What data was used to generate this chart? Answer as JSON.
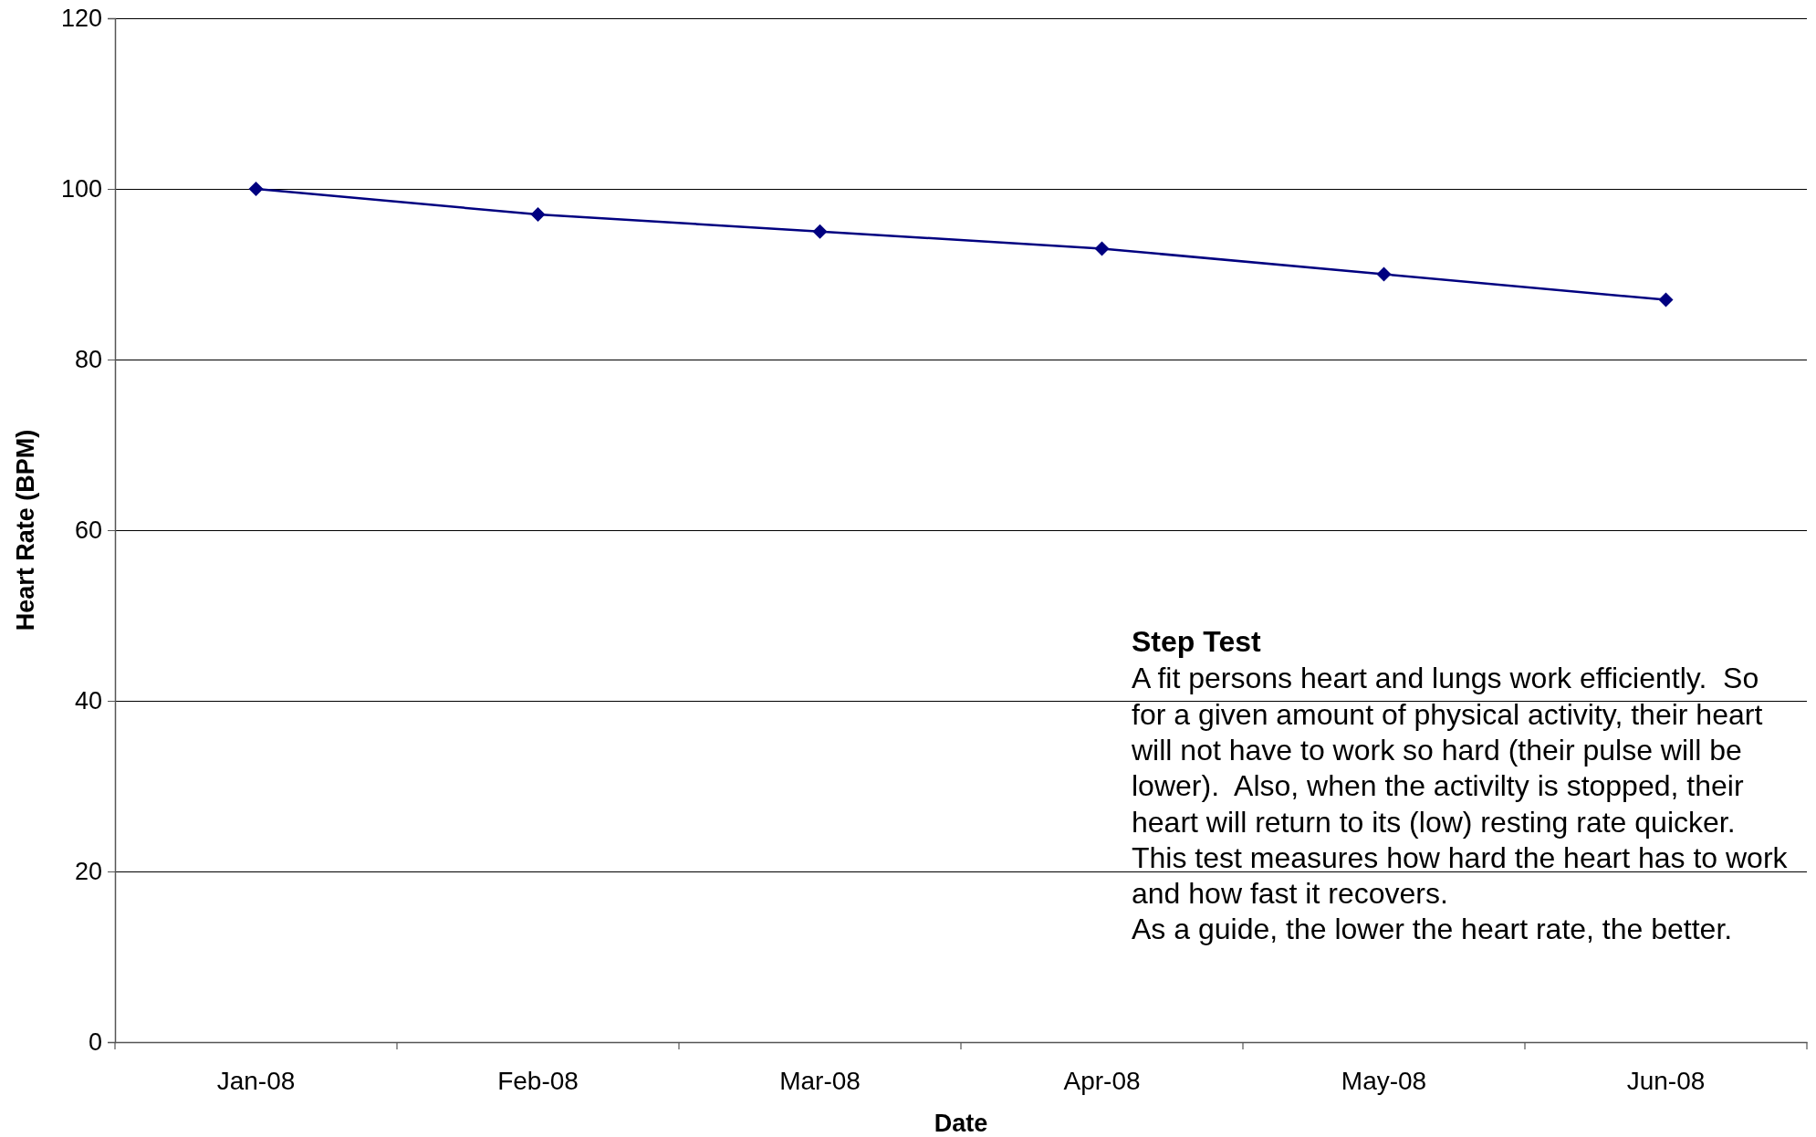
{
  "chart_data": {
    "type": "line",
    "title": "Step Test",
    "xlabel": "Date",
    "ylabel": "Heart Rate (BPM)",
    "annotations": [
      "A fit persons heart and lungs work efficiently.  So for a given amount of physical activity, their heart will not have to work so hard (their pulse will be lower).  Also, when the activilty is stopped, their heart will return to its (low) resting rate quicker.",
      "This test measures how hard the heart has to work and how fast it recovers.",
      "As a guide, the lower the heart rate, the better."
    ],
    "categories": [
      "Jan-08",
      "Feb-08",
      "Mar-08",
      "Apr-08",
      "May-08",
      "Jun-08"
    ],
    "series": [
      {
        "color": "#000080",
        "values": [
          100,
          97,
          95,
          93,
          90,
          87
        ]
      }
    ],
    "ylim": [
      0,
      120
    ],
    "yticks": [
      0,
      20,
      40,
      60,
      80,
      100,
      120
    ],
    "grid": "y",
    "marker": "diamond",
    "line_style": "solid"
  }
}
